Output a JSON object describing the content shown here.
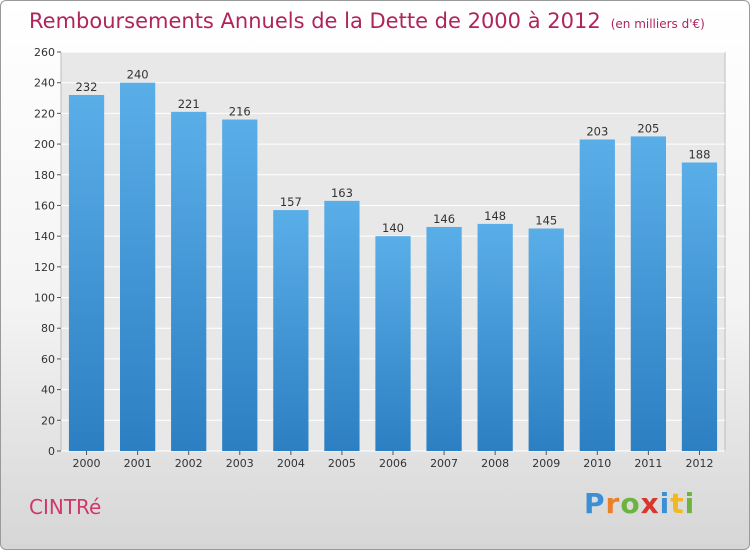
{
  "page": {
    "title": "Remboursements Annuels de la Dette de 2000 à 2012",
    "subtitle": "(en milliers d'€)",
    "commune": "CINTRé",
    "logo": "Proxiti"
  },
  "chart_data": {
    "type": "bar",
    "title": "Remboursements Annuels de la Dette de 2000 à 2012",
    "subtitle": "(en milliers d'€)",
    "categories": [
      "2000",
      "2001",
      "2002",
      "2003",
      "2004",
      "2005",
      "2006",
      "2007",
      "2008",
      "2009",
      "2010",
      "2011",
      "2012"
    ],
    "values": [
      232,
      240,
      221,
      216,
      157,
      163,
      140,
      146,
      148,
      145,
      203,
      205,
      188
    ],
    "ylim": [
      0,
      260
    ],
    "yticks": [
      0,
      20,
      40,
      60,
      80,
      100,
      120,
      140,
      160,
      180,
      200,
      220,
      240,
      260
    ],
    "grid": true,
    "bar_color": "#4a9de0"
  }
}
